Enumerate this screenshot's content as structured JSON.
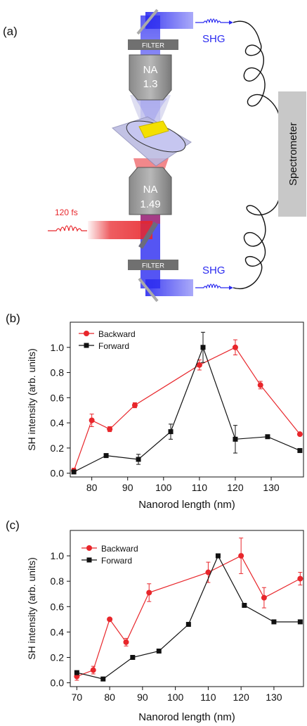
{
  "panel_a": {
    "label": "(a)",
    "filter_top": "FILTER",
    "filter_bottom": "FILTER",
    "obj_top_line1": "NA",
    "obj_top_line2": "1.3",
    "obj_bottom_line1": "NA",
    "obj_bottom_line2": "1.49",
    "shg_top": "SHG",
    "shg_bottom": "SHG",
    "pulse": "120 fs",
    "spectrometer": "Spectrometer",
    "colors": {
      "red": "#e8262b",
      "blue": "#2b2bf0",
      "grey": "#a6a6a6",
      "dark_grey": "#707070",
      "gold": "#f4e000"
    }
  },
  "chart_data": [
    {
      "panel": "(b)",
      "type": "line",
      "xlabel": "Nanorod length (nm)",
      "ylabel": "SH intensity (arb. units)",
      "xlim": [
        74,
        139
      ],
      "ylim": [
        -0.03,
        1.2
      ],
      "xticks": [
        "80",
        "90",
        "100",
        "110",
        "120",
        "130"
      ],
      "yticks": [
        "0.0",
        "0.2",
        "0.4",
        "0.6",
        "0.8",
        "1.0"
      ],
      "legend": "top-left",
      "series": [
        {
          "name": "Backward",
          "color": "#e8262b",
          "marker": "circle",
          "x": [
            75,
            80,
            85,
            92,
            110,
            120,
            127,
            138
          ],
          "y": [
            0.02,
            0.42,
            0.35,
            0.54,
            0.86,
            1.0,
            0.7,
            0.31
          ],
          "err": [
            0.02,
            0.05,
            0.02,
            0.02,
            0.04,
            0.06,
            0.03,
            0.01
          ]
        },
        {
          "name": "Forward",
          "color": "#111111",
          "marker": "square",
          "x": [
            75,
            84,
            93,
            102,
            111,
            120,
            129,
            138
          ],
          "y": [
            0.01,
            0.14,
            0.11,
            0.33,
            1.0,
            0.27,
            0.29,
            0.18
          ],
          "err": [
            0.01,
            0.0,
            0.04,
            0.06,
            0.12,
            0.11,
            0.0,
            0.0
          ]
        }
      ]
    },
    {
      "panel": "(c)",
      "type": "line",
      "xlabel": "Nanorod length (nm)",
      "ylabel": "SH intensity (arb. units)",
      "xlim": [
        68,
        139
      ],
      "ylim": [
        -0.03,
        1.2
      ],
      "xticks": [
        "70",
        "80",
        "90",
        "100",
        "110",
        "120",
        "130"
      ],
      "yticks": [
        "0.0",
        "0.2",
        "0.4",
        "0.6",
        "0.8",
        "1.0"
      ],
      "legend": "top-left",
      "series": [
        {
          "name": "Backward",
          "color": "#e8262b",
          "marker": "circle",
          "x": [
            70,
            75,
            80,
            85,
            92,
            110,
            120,
            127,
            138
          ],
          "y": [
            0.05,
            0.1,
            0.5,
            0.32,
            0.71,
            0.87,
            1.0,
            0.67,
            0.82
          ],
          "err": [
            0.03,
            0.03,
            0.0,
            0.03,
            0.07,
            0.08,
            0.14,
            0.08,
            0.05
          ]
        },
        {
          "name": "Forward",
          "color": "#111111",
          "marker": "square",
          "x": [
            70,
            78,
            87,
            95,
            104,
            113,
            121,
            130,
            138
          ],
          "y": [
            0.08,
            0.03,
            0.2,
            0.25,
            0.46,
            1.0,
            0.61,
            0.48,
            0.48
          ],
          "err": [
            0.0,
            0.0,
            0.0,
            0.0,
            0.0,
            0.0,
            0.0,
            0.0,
            0.0
          ]
        }
      ]
    }
  ]
}
